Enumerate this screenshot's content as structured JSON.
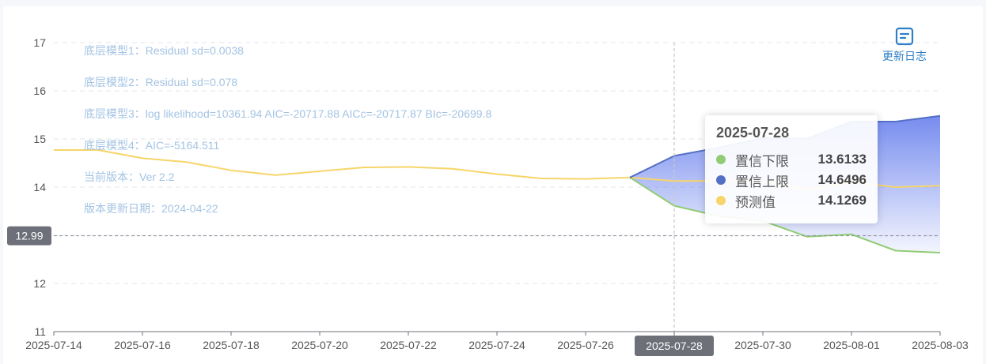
{
  "chart_data": {
    "type": "line",
    "x": [
      "2025-07-14",
      "2025-07-15",
      "2025-07-16",
      "2025-07-17",
      "2025-07-18",
      "2025-07-19",
      "2025-07-20",
      "2025-07-21",
      "2025-07-22",
      "2025-07-23",
      "2025-07-24",
      "2025-07-25",
      "2025-07-26",
      "2025-07-27",
      "2025-07-28",
      "2025-07-29",
      "2025-07-30",
      "2025-07-31",
      "2025-08-01",
      "2025-08-02",
      "2025-08-03"
    ],
    "x_tick_labels": [
      "2025-07-14",
      "2025-07-16",
      "2025-07-18",
      "2025-07-20",
      "2025-07-22",
      "2025-07-24",
      "2025-07-26",
      "2025-07-28",
      "2025-07-30",
      "2025-08-01",
      "2025-08-03"
    ],
    "y_ticks": [
      "11",
      "12",
      "13",
      "14",
      "15",
      "16",
      "17"
    ],
    "ylim": [
      11,
      17
    ],
    "grid": true,
    "series": [
      {
        "name": "预测值",
        "color": "#f7d56a",
        "values": [
          14.77,
          14.77,
          14.6,
          14.52,
          14.35,
          14.25,
          14.33,
          14.41,
          14.42,
          14.38,
          14.27,
          14.18,
          14.17,
          14.2,
          14.1269,
          14.13,
          14.12,
          13.95,
          14.1,
          14.0,
          14.03
        ]
      },
      {
        "name": "置信下限",
        "color": "#91cc75",
        "values": [
          null,
          null,
          null,
          null,
          null,
          null,
          null,
          null,
          null,
          null,
          null,
          null,
          null,
          14.2,
          13.6133,
          13.4,
          13.3,
          12.97,
          13.02,
          12.68,
          12.64
        ]
      },
      {
        "name": "置信上限",
        "color": "#5470c6",
        "values": [
          null,
          null,
          null,
          null,
          null,
          null,
          null,
          null,
          null,
          null,
          null,
          null,
          null,
          14.2,
          14.6496,
          14.82,
          15.02,
          15.01,
          15.36,
          15.36,
          15.48
        ]
      }
    ],
    "mark_line": {
      "value": 12.99,
      "label": "12.99"
    },
    "hover": {
      "x": "2025-07-28",
      "label": "2025-07-28"
    }
  },
  "notes": [
    "底层模型1：Residual sd=0.0038",
    "底层模型2：Residual sd=0.078",
    "底层模型3：log likelihood=10361.94 AIC=-20717.88 AICc=-20717.87 BIc=-20699.8",
    "底层模型4：AIC=-5164.511",
    "当前版本：Ver 2.2",
    "版本更新日期：2024-04-22"
  ],
  "changelog": {
    "label": "更新日志",
    "icon": "document-icon",
    "color": "#2f7fc7"
  },
  "tooltip": {
    "title": "2025-07-28",
    "rows": [
      {
        "name": "置信下限",
        "value": "13.6133",
        "color": "#91cc75"
      },
      {
        "name": "置信上限",
        "value": "14.6496",
        "color": "#5470c6"
      },
      {
        "name": "预测值",
        "value": "14.1269",
        "color": "#f7d56a"
      }
    ]
  }
}
